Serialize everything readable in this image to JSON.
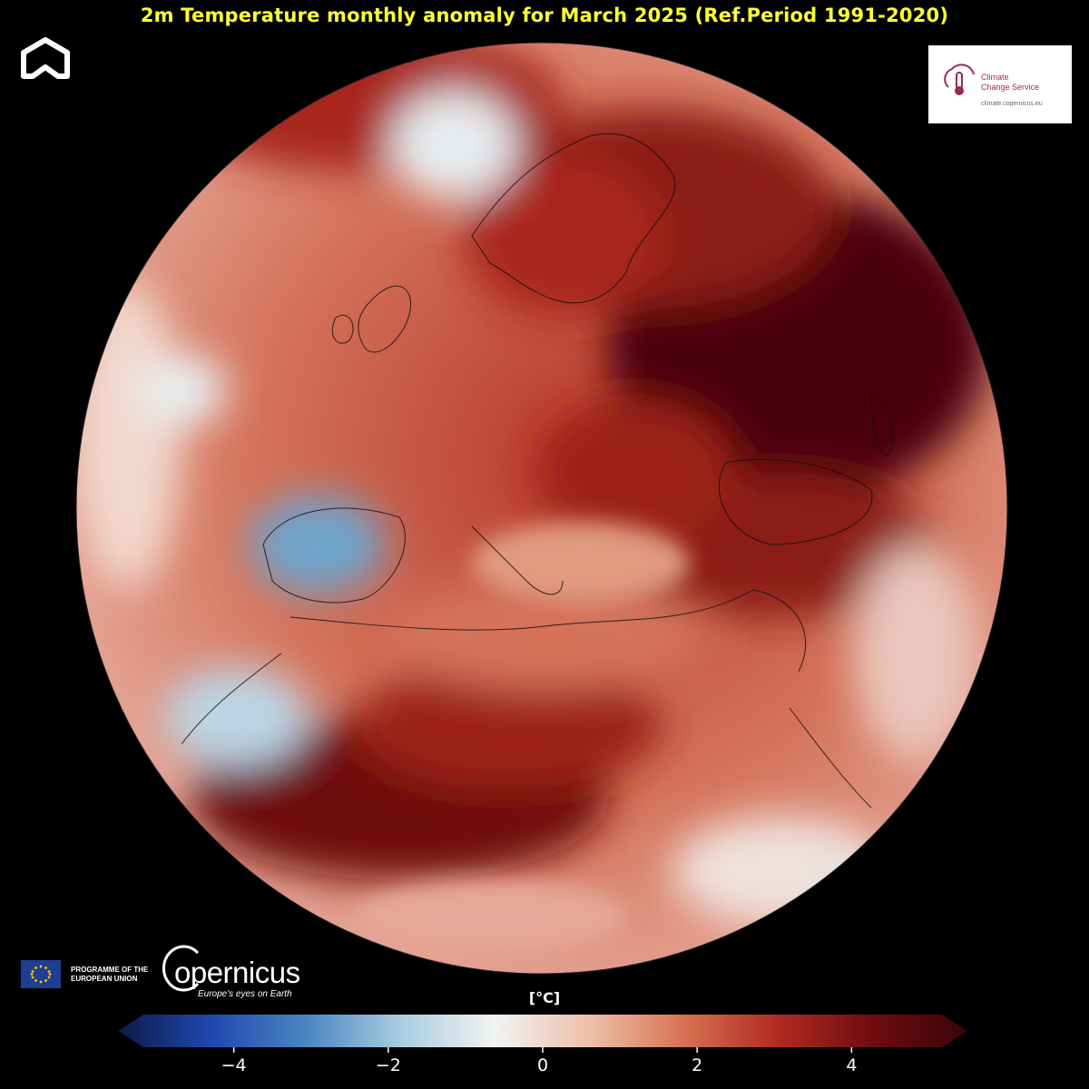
{
  "title": "2m Temperature monthly anomaly for March 2025 (Ref.Period 1991-2020)",
  "c3s": {
    "name_line1": "Climate",
    "name_line2": "Change Service",
    "url": "climate.copernicus.eu"
  },
  "eu": {
    "line1": "PROGRAMME OF THE",
    "line2": "EUROPEAN UNION"
  },
  "copernicus": {
    "word": "opernicus",
    "tagline": "Europe's eyes on Earth"
  },
  "colorbar": {
    "unit": "[°C]",
    "range": [
      -5.5,
      5.5
    ],
    "ticks": [
      {
        "value": -4,
        "label": "−4"
      },
      {
        "value": -2,
        "label": "−2"
      },
      {
        "value": 0,
        "label": "0"
      },
      {
        "value": 2,
        "label": "2"
      },
      {
        "value": 4,
        "label": "4"
      }
    ],
    "colors": [
      "#0d1a4a",
      "#1f49b0",
      "#4b86c2",
      "#a9cde0",
      "#f2f2f2",
      "#edc0a8",
      "#d87050",
      "#b02a20",
      "#6e0c10",
      "#3a0508"
    ]
  }
}
